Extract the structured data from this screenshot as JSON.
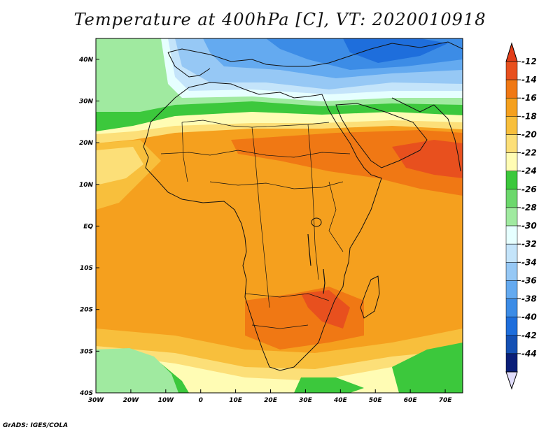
{
  "title": "Temperature at 400hPa [C], VT: 2020010918",
  "credit": "GrADS: IGES/COLA",
  "map": {
    "lon_range": [
      -30,
      75
    ],
    "lat_range": [
      -40,
      45
    ],
    "lon_ticks": [
      {
        "value": -30,
        "label": "30W"
      },
      {
        "value": -20,
        "label": "20W"
      },
      {
        "value": -10,
        "label": "10W"
      },
      {
        "value": 0,
        "label": "0"
      },
      {
        "value": 10,
        "label": "10E"
      },
      {
        "value": 20,
        "label": "20E"
      },
      {
        "value": 30,
        "label": "30E"
      },
      {
        "value": 40,
        "label": "40E"
      },
      {
        "value": 50,
        "label": "50E"
      },
      {
        "value": 60,
        "label": "60E"
      },
      {
        "value": 70,
        "label": "70E"
      }
    ],
    "lat_ticks": [
      {
        "value": 40,
        "label": "40N"
      },
      {
        "value": 30,
        "label": "30N"
      },
      {
        "value": 20,
        "label": "20N"
      },
      {
        "value": 10,
        "label": "10N"
      },
      {
        "value": 0,
        "label": "EQ"
      },
      {
        "value": -10,
        "label": "10S"
      },
      {
        "value": -20,
        "label": "20S"
      },
      {
        "value": -30,
        "label": "30S"
      },
      {
        "value": -40,
        "label": "40S"
      }
    ]
  },
  "colorbar": {
    "levels": [
      "-12",
      "-14",
      "-16",
      "-18",
      "-20",
      "-22",
      "-24",
      "-26",
      "-28",
      "-30",
      "-32",
      "-34",
      "-36",
      "-38",
      "-40",
      "-42",
      "-44"
    ],
    "colors": [
      "#e8501e",
      "#f07814",
      "#f5a01e",
      "#f8bf3c",
      "#fcdf78",
      "#fffcb4",
      "#3cc83c",
      "#6cd86c",
      "#a0eaa0",
      "#e6ffff",
      "#c4e4fa",
      "#96c8f5",
      "#64aaf0",
      "#3c8ce6",
      "#1e6edc",
      "#1450b4",
      "#0a1e78"
    ],
    "top_over_color": "#e23e1a",
    "bottom_under_color": "#e0dcfa"
  },
  "field_colors": {
    "ocean_green": "#3cc83c",
    "light_green": "#a0eaa0",
    "pale_yellow": "#fffcb4",
    "yellow": "#fcdf78",
    "light_orange": "#f8bf3c",
    "orange": "#f5a01e",
    "deep_orange": "#f07814",
    "red_orange": "#e8501e",
    "blue_light": "#96c8f5",
    "blue_mid": "#64aaf0",
    "blue_dark": "#3c8ce6",
    "navy": "#1e6edc"
  }
}
